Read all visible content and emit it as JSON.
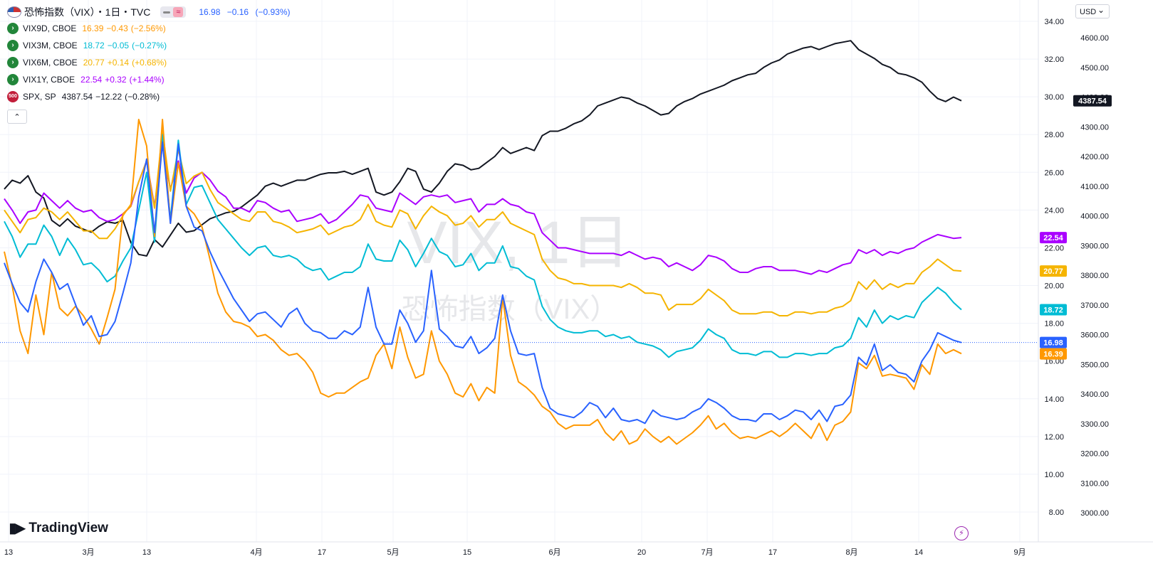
{
  "legend": {
    "main": {
      "title": "恐怖指数（VIX）・1日・TVC",
      "last": "16.98",
      "change": "−0.16",
      "change_pct": "(−0.93%)",
      "color": "#2962ff"
    },
    "symbols": [
      {
        "name": "VIX9D, CBOE",
        "last": "16.39",
        "change": "−0.43",
        "change_pct": "(−2.56%)",
        "color": "#ff9800"
      },
      {
        "name": "VIX3M, CBOE",
        "last": "18.72",
        "change": "−0.05",
        "change_pct": "(−0.27%)",
        "color": "#00bcd4"
      },
      {
        "name": "VIX6M, CBOE",
        "last": "20.77",
        "change": "+0.14",
        "change_pct": "(+0.68%)",
        "color": "#f5b400"
      },
      {
        "name": "VIX1Y, CBOE",
        "last": "22.54",
        "change": "+0.32",
        "change_pct": "(+1.44%)",
        "color": "#aa00ff"
      },
      {
        "name": "SPX, SP",
        "last": "4387.54",
        "change": "−12.22",
        "change_pct": "(−0.28%)",
        "color": "#131722"
      }
    ],
    "spx_icon_text": "500"
  },
  "watermark": {
    "line1": "VIX, 1日",
    "line2": "恐怖指数（VIX）"
  },
  "branding": {
    "logo_text": "TradingView"
  },
  "currency_selector": "USD",
  "chart_data": {
    "type": "line",
    "x_axis_labels": [
      "13",
      "3月",
      "13",
      "4月",
      "17",
      "5月",
      "15",
      "6月",
      "20",
      "7月",
      "17",
      "8月",
      "14",
      "9月"
    ],
    "left_axis": {
      "ticks": [
        "34.00",
        "32.00",
        "30.00",
        "28.00",
        "26.00",
        "24.00",
        "22.00",
        "20.00",
        "18.00",
        "16.00",
        "14.00",
        "12.00",
        "10.00",
        "8.00"
      ],
      "range": [
        7.5,
        34.2
      ]
    },
    "right_axis": {
      "ticks": [
        "4600.00",
        "4500.00",
        "4400.00",
        "4300.00",
        "4200.00",
        "4100.00",
        "4000.00",
        "3900.00",
        "3800.00",
        "3700.00",
        "3600.00",
        "3500.00",
        "3400.00",
        "3300.00",
        "3200.00",
        "3100.00",
        "3000.00"
      ],
      "range": [
        2950,
        4615
      ]
    },
    "series": [
      {
        "name": "VIX1Y, CBOE",
        "axis": "left",
        "color": "#aa00ff",
        "values": [
          24.6,
          24.0,
          23.3,
          23.9,
          24.0,
          24.9,
          24.5,
          24.1,
          24.5,
          24.1,
          23.9,
          24.0,
          23.6,
          23.4,
          23.5,
          23.8,
          24.2,
          25.5,
          26.6,
          24.2,
          27.4,
          25.1,
          26.6,
          24.9,
          25.7,
          26.0,
          25.6,
          25.0,
          24.7,
          24.1,
          24.1,
          23.9,
          24.5,
          24.4,
          24.1,
          23.9,
          24.0,
          23.4,
          23.5,
          23.6,
          23.8,
          23.3,
          23.5,
          23.9,
          24.3,
          24.8,
          24.7,
          24.1,
          24.0,
          23.9,
          24.9,
          24.6,
          24.3,
          24.7,
          24.8,
          24.7,
          24.8,
          24.4,
          24.5,
          24.6,
          23.9,
          24.3,
          24.3,
          24.6,
          24.3,
          24.2,
          23.9,
          23.8,
          22.8,
          22.4,
          22.0,
          22.0,
          21.9,
          21.8,
          21.7,
          21.7,
          21.7,
          21.7,
          21.6,
          21.8,
          21.6,
          21.4,
          21.5,
          21.4,
          21.0,
          21.2,
          21.0,
          20.8,
          21.1,
          21.6,
          21.5,
          21.3,
          20.9,
          20.7,
          20.7,
          20.9,
          21.0,
          21.0,
          20.8,
          20.8,
          20.8,
          20.7,
          20.6,
          20.8,
          20.7,
          20.9,
          21.1,
          21.2,
          21.9,
          21.7,
          21.9,
          21.6,
          21.8,
          21.7,
          21.9,
          22.0,
          22.3,
          22.5,
          22.7,
          22.6,
          22.5,
          22.54
        ]
      },
      {
        "name": "VIX6M, CBOE",
        "axis": "left",
        "color": "#f5b400",
        "values": [
          24.0,
          23.4,
          22.8,
          23.5,
          23.6,
          24.1,
          23.9,
          23.5,
          23.9,
          23.4,
          22.9,
          22.9,
          22.5,
          22.5,
          23.0,
          23.7,
          24.3,
          25.5,
          26.6,
          24.1,
          28.2,
          25.0,
          27.2,
          25.4,
          25.8,
          26.0,
          25.1,
          24.4,
          24.1,
          23.8,
          23.5,
          23.4,
          23.9,
          23.9,
          23.4,
          23.3,
          23.1,
          22.8,
          22.9,
          23.0,
          23.2,
          22.7,
          22.9,
          23.1,
          23.2,
          23.5,
          24.3,
          23.4,
          23.2,
          23.1,
          24.0,
          23.8,
          23.0,
          23.7,
          24.2,
          23.9,
          23.7,
          23.2,
          23.3,
          23.7,
          23.1,
          23.5,
          23.5,
          23.9,
          23.3,
          23.1,
          22.9,
          22.7,
          21.4,
          20.8,
          20.4,
          20.3,
          20.1,
          20.1,
          20.0,
          20.0,
          20.0,
          20.0,
          19.9,
          20.1,
          19.9,
          19.6,
          19.6,
          19.5,
          18.7,
          19.0,
          19.0,
          19.0,
          19.3,
          19.8,
          19.5,
          19.2,
          18.7,
          18.5,
          18.5,
          18.5,
          18.6,
          18.6,
          18.4,
          18.4,
          18.6,
          18.6,
          18.5,
          18.6,
          18.6,
          18.8,
          18.9,
          19.2,
          20.2,
          19.8,
          20.3,
          19.8,
          20.1,
          19.9,
          20.1,
          20.1,
          20.7,
          21.0,
          21.4,
          21.1,
          20.8,
          20.77
        ]
      },
      {
        "name": "VIX3M, CBOE",
        "axis": "left",
        "color": "#00bcd4",
        "values": [
          23.4,
          22.6,
          21.5,
          22.2,
          22.2,
          23.2,
          22.6,
          21.6,
          22.5,
          21.9,
          21.1,
          21.2,
          20.8,
          20.2,
          20.5,
          21.3,
          22.0,
          24.0,
          26.0,
          22.3,
          28.0,
          23.5,
          27.7,
          24.3,
          25.2,
          25.3,
          24.4,
          23.5,
          23.0,
          22.5,
          22.0,
          21.6,
          22.0,
          22.1,
          21.6,
          21.5,
          21.6,
          21.4,
          21.0,
          20.8,
          20.9,
          20.3,
          20.5,
          20.7,
          20.7,
          21.0,
          22.2,
          21.4,
          21.3,
          21.3,
          22.4,
          21.9,
          21.0,
          21.7,
          22.5,
          21.8,
          21.6,
          21.0,
          21.1,
          21.7,
          20.8,
          21.2,
          21.2,
          22.1,
          21.0,
          20.9,
          20.5,
          20.3,
          18.9,
          18.2,
          17.8,
          17.6,
          17.5,
          17.5,
          17.6,
          17.6,
          17.3,
          17.4,
          17.2,
          17.3,
          17.0,
          16.9,
          16.8,
          16.6,
          16.2,
          16.5,
          16.6,
          16.7,
          17.1,
          17.7,
          17.4,
          17.2,
          16.6,
          16.4,
          16.4,
          16.3,
          16.5,
          16.5,
          16.2,
          16.2,
          16.4,
          16.4,
          16.3,
          16.4,
          16.4,
          16.7,
          16.8,
          17.2,
          18.3,
          17.8,
          18.7,
          18.0,
          18.4,
          18.2,
          18.4,
          18.3,
          19.1,
          19.5,
          19.9,
          19.6,
          19.1,
          18.72
        ]
      },
      {
        "name": "恐怖指数（VIX）",
        "axis": "left",
        "color": "#2962ff",
        "values": [
          21.2,
          20.1,
          19.1,
          18.6,
          20.2,
          21.4,
          20.7,
          19.8,
          20.1,
          19.0,
          17.9,
          18.4,
          17.3,
          17.4,
          18.1,
          19.6,
          21.2,
          24.7,
          26.7,
          22.8,
          27.6,
          23.3,
          27.5,
          24.2,
          23.1,
          22.9,
          21.8,
          20.9,
          20.1,
          19.3,
          18.7,
          18.1,
          18.5,
          18.6,
          18.2,
          17.8,
          18.5,
          18.8,
          18.0,
          17.6,
          17.5,
          17.2,
          17.2,
          17.6,
          17.4,
          17.8,
          19.9,
          17.8,
          16.9,
          16.9,
          18.7,
          18.0,
          17.0,
          17.6,
          20.8,
          17.7,
          17.3,
          16.8,
          16.7,
          17.3,
          16.4,
          16.7,
          17.2,
          19.5,
          17.6,
          16.4,
          16.3,
          16.4,
          14.6,
          13.5,
          13.2,
          13.1,
          13.0,
          13.3,
          13.8,
          13.6,
          13.0,
          13.5,
          12.9,
          12.8,
          12.9,
          12.7,
          13.4,
          13.1,
          13.0,
          12.9,
          13.0,
          13.3,
          13.5,
          14.0,
          13.8,
          13.5,
          13.1,
          12.9,
          12.9,
          12.8,
          13.2,
          13.2,
          12.9,
          13.1,
          13.4,
          13.3,
          12.9,
          13.4,
          12.8,
          13.6,
          13.7,
          14.2,
          16.2,
          15.8,
          16.9,
          15.5,
          15.8,
          15.4,
          15.3,
          14.9,
          16.0,
          16.6,
          17.5,
          17.3,
          17.1,
          16.98
        ]
      },
      {
        "name": "VIX9D, CBOE",
        "axis": "left",
        "color": "#ff9800",
        "values": [
          21.8,
          20.0,
          17.6,
          16.4,
          19.5,
          17.4,
          20.7,
          18.8,
          18.4,
          18.9,
          18.4,
          17.7,
          16.9,
          18.3,
          19.8,
          23.8,
          24.2,
          28.8,
          27.4,
          22.6,
          28.8,
          23.3,
          26.5,
          24.2,
          23.8,
          23.1,
          21.4,
          19.6,
          18.6,
          18.1,
          18.0,
          17.8,
          17.3,
          17.4,
          17.1,
          16.6,
          16.3,
          16.4,
          16.0,
          15.4,
          14.3,
          14.1,
          14.3,
          14.3,
          14.6,
          14.9,
          15.1,
          16.3,
          16.9,
          15.6,
          17.8,
          16.2,
          15.1,
          15.3,
          17.6,
          16.0,
          15.3,
          14.3,
          14.1,
          14.8,
          13.9,
          14.6,
          14.3,
          19.4,
          16.3,
          14.9,
          14.6,
          14.2,
          13.6,
          13.3,
          12.7,
          12.4,
          12.6,
          12.6,
          12.6,
          12.9,
          12.2,
          11.8,
          12.3,
          11.6,
          11.8,
          12.4,
          12.0,
          11.7,
          12.0,
          11.6,
          11.9,
          12.2,
          12.6,
          13.1,
          12.4,
          12.7,
          12.2,
          11.9,
          12.0,
          11.9,
          12.1,
          12.3,
          12.0,
          12.3,
          12.7,
          12.3,
          11.9,
          12.7,
          11.8,
          12.6,
          12.8,
          13.3,
          15.9,
          15.6,
          16.3,
          15.2,
          15.3,
          15.2,
          15.1,
          14.5,
          15.8,
          15.3,
          16.9,
          16.4,
          16.6,
          16.39
        ]
      },
      {
        "name": "SPX, SP",
        "axis": "right",
        "color": "#131722",
        "values": [
          4090,
          4120,
          4110,
          4135,
          4080,
          4060,
          3985,
          3965,
          3990,
          3965,
          3955,
          3945,
          3965,
          3980,
          3975,
          3985,
          3910,
          3870,
          3865,
          3920,
          3895,
          3935,
          3975,
          3945,
          3950,
          3970,
          3990,
          4000,
          4010,
          4015,
          4030,
          4050,
          4070,
          4100,
          4110,
          4100,
          4110,
          4120,
          4120,
          4130,
          4140,
          4145,
          4145,
          4150,
          4140,
          4150,
          4160,
          4080,
          4070,
          4080,
          4115,
          4160,
          4150,
          4090,
          4080,
          4110,
          4150,
          4175,
          4170,
          4155,
          4160,
          4180,
          4200,
          4230,
          4210,
          4220,
          4230,
          4220,
          4270,
          4285,
          4285,
          4295,
          4310,
          4320,
          4340,
          4370,
          4380,
          4390,
          4400,
          4395,
          4380,
          4370,
          4355,
          4340,
          4345,
          4370,
          4385,
          4395,
          4410,
          4420,
          4430,
          4440,
          4455,
          4465,
          4475,
          4480,
          4500,
          4515,
          4525,
          4545,
          4555,
          4565,
          4570,
          4560,
          4570,
          4580,
          4585,
          4590,
          4560,
          4545,
          4530,
          4510,
          4500,
          4480,
          4475,
          4465,
          4450,
          4420,
          4395,
          4385,
          4400,
          4387.54
        ]
      }
    ]
  }
}
